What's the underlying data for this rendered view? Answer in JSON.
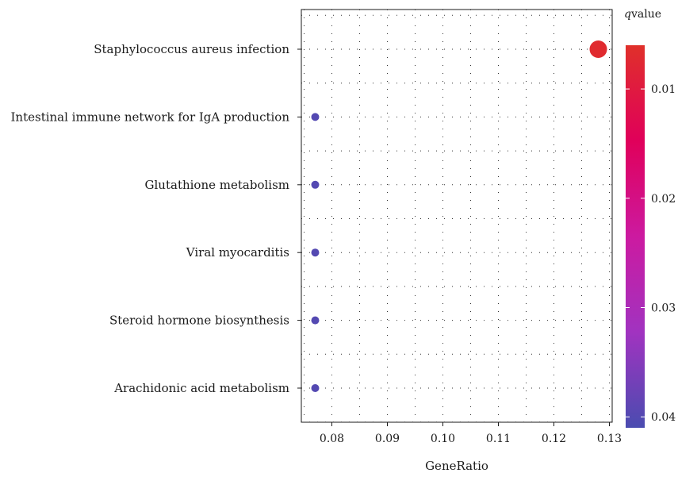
{
  "chart_data": {
    "type": "scatter",
    "xlabel": "GeneRatio",
    "ylabel": "",
    "xlim": [
      0.0745,
      0.1305
    ],
    "x_ticks": [
      "0.08",
      "0.09",
      "0.10",
      "0.11",
      "0.12",
      "0.13"
    ],
    "x_tick_values": [
      0.08,
      0.09,
      0.1,
      0.11,
      0.12,
      0.13
    ],
    "categories": [
      "Staphylococcus aureus infection",
      "Intestinal immune network for IgA production",
      "Glutathione metabolism",
      "Viral myocarditis",
      "Steroid hormone biosynthesis",
      "Arachidonic acid metabolism"
    ],
    "points": [
      {
        "category": "Staphylococcus aureus infection",
        "x": 0.128,
        "qvalue": 0.007,
        "size_rank": 2
      },
      {
        "category": "Intestinal immune network for IgA production",
        "x": 0.077,
        "qvalue": 0.04,
        "size_rank": 1
      },
      {
        "category": "Glutathione metabolism",
        "x": 0.077,
        "qvalue": 0.04,
        "size_rank": 1
      },
      {
        "category": "Viral myocarditis",
        "x": 0.077,
        "qvalue": 0.04,
        "size_rank": 1
      },
      {
        "category": "Steroid hormone biosynthesis",
        "x": 0.077,
        "qvalue": 0.04,
        "size_rank": 1
      },
      {
        "category": "Arachidonic acid metabolism",
        "x": 0.077,
        "qvalue": 0.04,
        "size_rank": 1
      }
    ],
    "grid": "dotted",
    "legend": {
      "title_italic": "q",
      "title_rest": "value",
      "placement": "right",
      "range": [
        0.006,
        0.041
      ],
      "ticks": [
        "0.01",
        "0.02",
        "0.03",
        "0.04"
      ],
      "tick_values": [
        0.01,
        0.02,
        0.03,
        0.04
      ],
      "colors": [
        "#e0302a",
        "#e0005a",
        "#cc1aa0",
        "#a133c0",
        "#4a4cb0"
      ]
    }
  }
}
